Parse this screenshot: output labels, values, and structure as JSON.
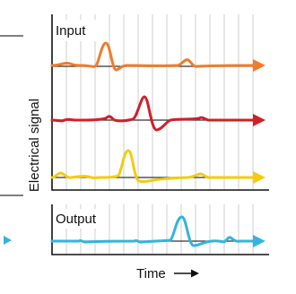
{
  "panels": {
    "input": {
      "label": "Input"
    },
    "output": {
      "label": "Output"
    }
  },
  "axes": {
    "y_label": "Electrical signal",
    "x_label": "Time"
  },
  "arrow_glyph": "→",
  "colors": {
    "grid": "#cfcfcf",
    "border": "#111111",
    "baseline": "#333333",
    "trace_1": "#f07c2c",
    "trace_2": "#d0202a",
    "trace_3": "#f2cc12",
    "trace_output": "#34b4de"
  }
}
